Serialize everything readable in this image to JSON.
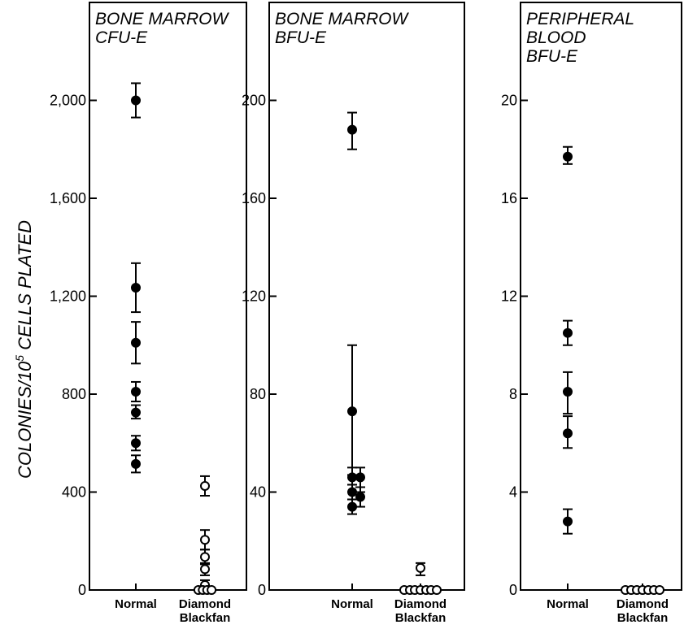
{
  "figure": {
    "ylabel_main": "COLONIES/10",
    "ylabel_sup": "5",
    "ylabel_rest": " CELLS PLATED"
  },
  "chart_data": [
    {
      "type": "scatter",
      "title_lines": [
        "BONE MARROW",
        "CFU-E"
      ],
      "ylabel": "COLONIES/10^5 CELLS PLATED",
      "ylim": [
        0,
        2400
      ],
      "yticks": [
        0,
        400,
        800,
        1200,
        1600,
        2000
      ],
      "ytick_labels": [
        "0",
        "400",
        "800",
        "1,200",
        "1,600",
        "2,000"
      ],
      "categories": [
        "Normal",
        "Diamond Blackfan"
      ],
      "series": [
        {
          "category": "Normal",
          "marker": "filled",
          "points": [
            {
              "x": 0,
              "y": 2000,
              "err": [
                1930,
                2070
              ]
            },
            {
              "x": 0,
              "y": 1235,
              "err": [
                1135,
                1335
              ]
            },
            {
              "x": 0,
              "y": 1010,
              "err": [
                925,
                1095
              ]
            },
            {
              "x": 0,
              "y": 810,
              "err": [
                770,
                850
              ]
            },
            {
              "x": 0,
              "y": 725,
              "err": [
                700,
                755
              ]
            },
            {
              "x": 0,
              "y": 600,
              "err": [
                570,
                630
              ]
            },
            {
              "x": 0,
              "y": 515,
              "err": [
                480,
                550
              ]
            }
          ]
        },
        {
          "category": "Diamond Blackfan",
          "marker": "open",
          "points": [
            {
              "x": 0,
              "y": 425,
              "err": [
                385,
                465
              ]
            },
            {
              "x": 0,
              "y": 205,
              "err": [
                165,
                245
              ]
            },
            {
              "x": 0,
              "y": 135,
              "err": [
                105,
                165
              ]
            },
            {
              "x": 0,
              "y": 85,
              "err": [
                60,
                110
              ]
            },
            {
              "x": 0,
              "y": 20,
              "err": [
                0,
                40
              ]
            },
            {
              "x": -0.09,
              "y": 0
            },
            {
              "x": -0.03,
              "y": 0
            },
            {
              "x": 0.03,
              "y": 0
            },
            {
              "x": 0.09,
              "y": 0
            }
          ]
        }
      ]
    },
    {
      "type": "scatter",
      "title_lines": [
        "BONE MARROW",
        "BFU-E"
      ],
      "ylim": [
        0,
        240
      ],
      "yticks": [
        0,
        40,
        80,
        120,
        160,
        200
      ],
      "ytick_labels": [
        "0",
        "40",
        "80",
        "120",
        "160",
        "200"
      ],
      "categories": [
        "Normal",
        "Diamond Blackfan"
      ],
      "series": [
        {
          "category": "Normal",
          "marker": "filled",
          "points": [
            {
              "x": 0,
              "y": 188,
              "err": [
                180,
                195
              ]
            },
            {
              "x": 0,
              "y": 73,
              "err": [
                47,
                100
              ]
            },
            {
              "x": 0,
              "y": 46,
              "err": [
                43,
                50
              ]
            },
            {
              "x": 0.1,
              "y": 46,
              "err": [
                40,
                50
              ]
            },
            {
              "x": 0,
              "y": 40,
              "err": [
                37,
                43
              ]
            },
            {
              "x": 0.1,
              "y": 38,
              "err": [
                34,
                42
              ]
            },
            {
              "x": 0,
              "y": 34,
              "err": [
                31,
                37
              ]
            }
          ]
        },
        {
          "category": "Diamond Blackfan",
          "marker": "open",
          "points": [
            {
              "x": 0,
              "y": 9,
              "err": [
                6,
                11
              ]
            },
            {
              "x": -0.2,
              "y": 0
            },
            {
              "x": -0.13,
              "y": 0
            },
            {
              "x": -0.07,
              "y": 0
            },
            {
              "x": 0,
              "y": 0
            },
            {
              "x": 0.07,
              "y": 0
            },
            {
              "x": 0.13,
              "y": 0
            },
            {
              "x": 0.2,
              "y": 0
            }
          ]
        }
      ]
    },
    {
      "type": "scatter",
      "title_lines": [
        "PERIPHERAL",
        "BLOOD",
        "BFU-E"
      ],
      "ylim": [
        0,
        24
      ],
      "yticks": [
        0,
        4,
        8,
        12,
        16,
        20
      ],
      "ytick_labels": [
        "0",
        "4",
        "8",
        "12",
        "16",
        "20"
      ],
      "categories": [
        "Normal",
        "Diamond Blackfan"
      ],
      "series": [
        {
          "category": "Normal",
          "marker": "filled",
          "points": [
            {
              "x": 0,
              "y": 17.7,
              "err": [
                17.4,
                18.1
              ]
            },
            {
              "x": 0,
              "y": 10.5,
              "err": [
                10.0,
                11.0
              ]
            },
            {
              "x": 0,
              "y": 8.1,
              "err": [
                7.2,
                8.9
              ]
            },
            {
              "x": 0,
              "y": 6.4,
              "err": [
                5.8,
                7.1
              ]
            },
            {
              "x": 0,
              "y": 2.8,
              "err": [
                2.3,
                3.3
              ]
            }
          ]
        },
        {
          "category": "Diamond Blackfan",
          "marker": "open",
          "points": [
            {
              "x": -0.21,
              "y": 0
            },
            {
              "x": -0.14,
              "y": 0
            },
            {
              "x": -0.07,
              "y": 0
            },
            {
              "x": 0,
              "y": 0
            },
            {
              "x": 0.07,
              "y": 0
            },
            {
              "x": 0.14,
              "y": 0
            },
            {
              "x": 0.21,
              "y": 0
            }
          ]
        }
      ]
    }
  ]
}
